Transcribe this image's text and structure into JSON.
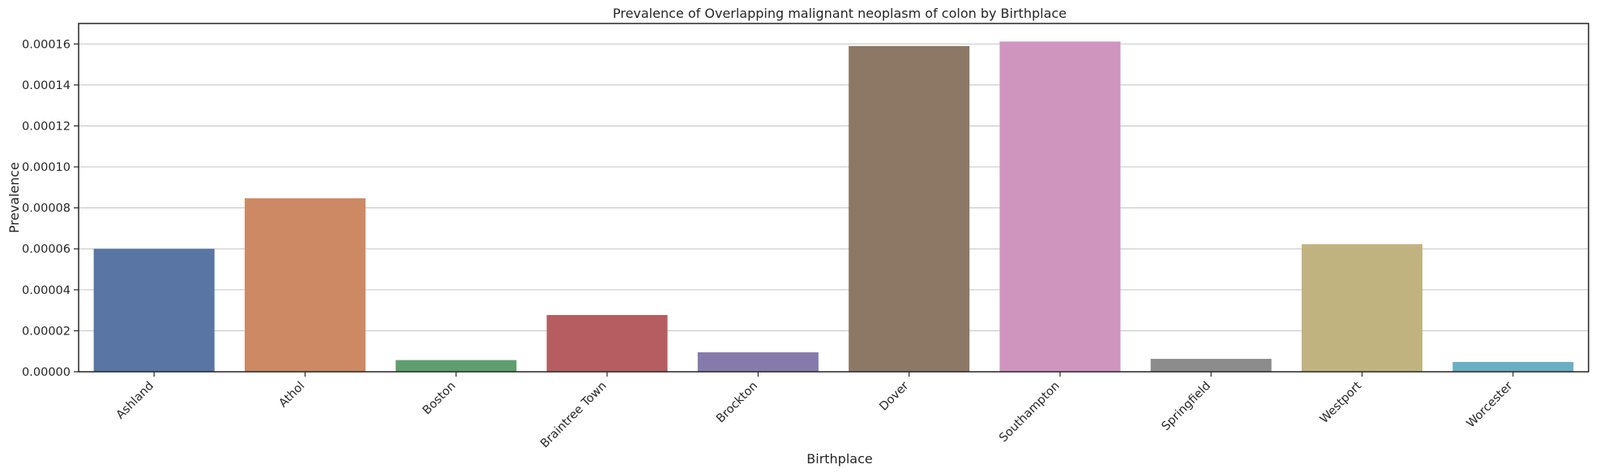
{
  "chart_data": {
    "type": "bar",
    "title": "Prevalence of Overlapping malignant neoplasm of colon by Birthplace",
    "xlabel": "Birthplace",
    "ylabel": "Prevalence",
    "categories": [
      "Ashland",
      "Athol",
      "Boston",
      "Braintree Town",
      "Brockton",
      "Dover",
      "Southampton",
      "Springfield",
      "Westport",
      "Worcester"
    ],
    "values": [
      6e-05,
      8.47e-05,
      5.7e-06,
      2.77e-05,
      9.5e-06,
      0.000159,
      0.0001612,
      6.3e-06,
      6.23e-05,
      4.8e-06
    ],
    "colors": [
      "#5875a4",
      "#cc8963",
      "#5f9e6e",
      "#b55d60",
      "#857aab",
      "#8d7866",
      "#d095bf",
      "#8c8c8c",
      "#c1b37f",
      "#6aaec2"
    ],
    "ylim": [
      0,
      0.00017
    ],
    "yticks": [
      "0.00000",
      "0.00002",
      "0.00004",
      "0.00006",
      "0.00008",
      "0.00010",
      "0.00012",
      "0.00014",
      "0.00016"
    ],
    "grid": "horizontal",
    "legend": "none"
  }
}
